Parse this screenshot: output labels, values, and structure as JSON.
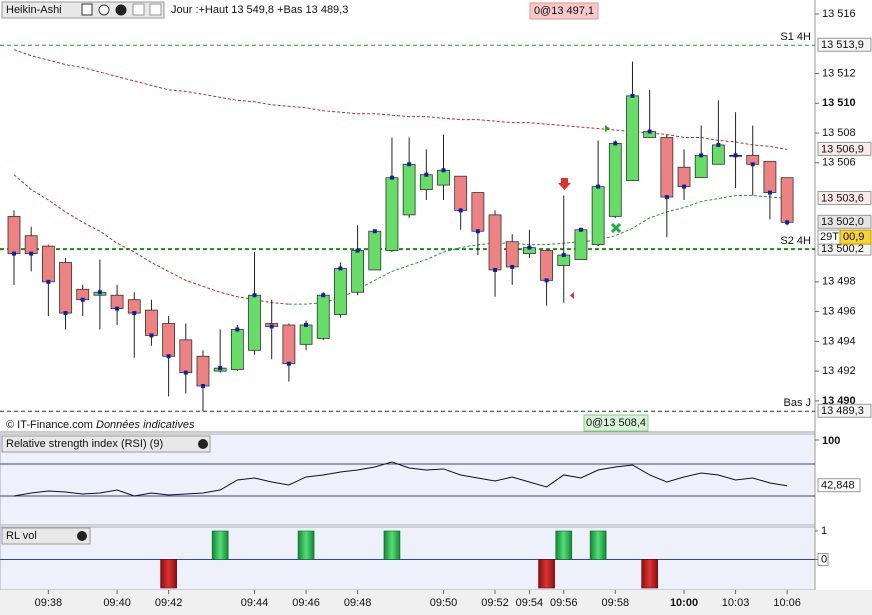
{
  "chart_data": [
    {
      "type": "candlestick",
      "title": "Heikin-Ashi",
      "info": "Jour :+Haut 13 549,8 +Bas 13 489,3",
      "order_top": "0@13 497,1",
      "order_bottom": "0@13 508,4",
      "copyright": "© IT-Finance.com",
      "disclaimer": "Données indicatives",
      "categories": [
        null,
        null,
        "09:38",
        null,
        null,
        null,
        "09:40",
        null,
        null,
        "09:42",
        null,
        null,
        null,
        null,
        "09:44",
        null,
        null,
        "09:46",
        null,
        null,
        "09:48",
        null,
        null,
        null,
        null,
        "09:50",
        null,
        null,
        "09:52",
        null,
        "09:54",
        null,
        "09:56",
        null,
        null,
        "09:58",
        null,
        null,
        null,
        "10:00",
        null,
        null,
        "10:03",
        null,
        null,
        "10:06"
      ],
      "bold_category": 39,
      "open": [
        13502.4,
        13501.1,
        13500.4,
        13499.3,
        13497.5,
        13497.1,
        13497.1,
        13496.8,
        13496.1,
        13495.2,
        13494.1,
        13493.0,
        13492.0,
        13492.1,
        13493.4,
        13495.2,
        13495.1,
        13493.8,
        13494.2,
        13495.8,
        13497.3,
        13498.8,
        13500.1,
        13502.5,
        13504.2,
        13504.5,
        13505.1,
        13504.0,
        13502.5,
        13500.7,
        13499.9,
        13500.1,
        13499.1,
        13499.5,
        13500.5,
        13502.4,
        13504.8,
        13507.7,
        13507.7,
        13505.7,
        13505.0,
        13505.9,
        13506.5,
        13506.5,
        13506.1,
        13505.0
      ],
      "high": [
        13502.8,
        13501.7,
        13500.5,
        13499.6,
        13497.8,
        13499.5,
        13497.8,
        13497.3,
        13496.8,
        13495.7,
        13495.2,
        13493.4,
        13494.8,
        13495.1,
        13500.0,
        13496.8,
        13495.2,
        13495.4,
        13497.3,
        13499.3,
        13501.8,
        13501.4,
        13507.7,
        13507.7,
        13506.9,
        13507.9,
        13505.1,
        13504.0,
        13502.8,
        13501.2,
        13501.5,
        13500.1,
        13503.8,
        13501.5,
        13507.5,
        13507.5,
        13512.8,
        13510.9,
        13507.9,
        13506.9,
        13508.5,
        13510.2,
        13509.4,
        13508.5,
        13506.1,
        13505.0
      ],
      "low": [
        13497.8,
        13498.7,
        13495.7,
        13494.8,
        13495.7,
        13494.8,
        13495.1,
        13492.9,
        13493.7,
        13490.3,
        13490.5,
        13489.3,
        13491.9,
        13492.0,
        13493.1,
        13492.8,
        13491.3,
        13493.4,
        13494.1,
        13495.6,
        13497.1,
        13498.8,
        13500.0,
        13502.3,
        13503.5,
        13503.5,
        13501.5,
        13499.8,
        13497.0,
        13497.8,
        13499.6,
        13496.4,
        13496.6,
        13499.5,
        13500.4,
        13502.3,
        13504.8,
        13507.7,
        13501.0,
        13503.5,
        13505.0,
        13505.9,
        13504.3,
        13503.8,
        13502.2,
        13501.8
      ],
      "close": [
        13499.9,
        13499.9,
        13498.0,
        13495.9,
        13496.8,
        13497.3,
        13496.2,
        13495.9,
        13494.4,
        13493.0,
        13491.9,
        13491.0,
        13492.2,
        13494.8,
        13497.1,
        13495.0,
        13492.5,
        13495.1,
        13497.1,
        13498.9,
        13500.1,
        13501.4,
        13505.0,
        13505.9,
        13505.2,
        13505.5,
        13502.8,
        13501.4,
        13498.8,
        13499.0,
        13500.3,
        13498.1,
        13499.8,
        13501.5,
        13504.4,
        13507.3,
        13510.5,
        13508.1,
        13503.7,
        13504.4,
        13506.5,
        13507.2,
        13506.5,
        13505.9,
        13504.0,
        13502.0
      ],
      "up_color": "#66dd66",
      "down_color": "#ee8282",
      "flat_color": "#000000",
      "series": [
        {
          "color": "#b03030",
          "last_label": "13 506,9",
          "values": [
            13513.6,
            13513.2,
            13512.9,
            13512.6,
            13512.4,
            13512.1,
            13511.8,
            13511.5,
            13511.2,
            13510.9,
            13510.8,
            13510.6,
            13510.4,
            13510.2,
            13510.1,
            13509.9,
            13509.8,
            13509.7,
            13509.5,
            13509.4,
            13509.3,
            13509.3,
            13509.2,
            13509.1,
            13509.1,
            13509.0,
            13508.9,
            13508.9,
            13508.8,
            13508.7,
            13508.7,
            13508.6,
            13508.5,
            13508.4,
            13508.3,
            13508.2,
            13508.1,
            13508.0,
            13507.9,
            13507.7,
            13507.7,
            13507.5,
            13507.4,
            13507.2,
            13507.1,
            13506.9
          ]
        },
        {
          "color": "#b03030",
          "values": [
            13505.2,
            13504.2,
            13503.5,
            13502.7,
            13502.0,
            13501.4,
            13500.6,
            13500.0,
            13499.3,
            13498.7,
            13498.1,
            13497.7,
            13497.3,
            13497.0,
            13496.8,
            13496.6,
            13496.5,
            null,
            null,
            null,
            null,
            null,
            null,
            null,
            null,
            null,
            null,
            null,
            null,
            null,
            null,
            null,
            null,
            null,
            null,
            null,
            null,
            null,
            null,
            null,
            null,
            null,
            null,
            null,
            null,
            null
          ]
        },
        {
          "color": "#2e8b57",
          "last_label": "13 503,6",
          "values": [
            null,
            null,
            null,
            null,
            null,
            null,
            null,
            null,
            null,
            null,
            null,
            null,
            null,
            null,
            null,
            null,
            13496.5,
            13496.5,
            13496.6,
            13496.9,
            13497.5,
            13498.1,
            13498.7,
            13499.1,
            13499.5,
            13500.0,
            13500.3,
            13500.5,
            13500.6,
            13500.6,
            13500.5,
            13500.5,
            13500.6,
            13500.7,
            13500.8,
            13501.1,
            13501.6,
            13502.3,
            13502.7,
            13503.0,
            13503.4,
            13503.6,
            13503.8,
            13503.8,
            13503.7,
            13503.6
          ]
        }
      ],
      "levels": [
        {
          "label": "S1 4H",
          "value": 13513.9,
          "value_label": "13 513,9",
          "color": "#2a9a2a"
        },
        {
          "label": "S2 4H",
          "value": 13500.2,
          "value_label": "13 500,2",
          "color": "#1a8a1a"
        },
        {
          "label": "Bas J",
          "value": 13489.3,
          "value_label": "13 489,3",
          "color": "#333333"
        }
      ],
      "price_tag": {
        "value": 13502.0,
        "label": "13 502,0"
      },
      "timer": "29T",
      "countdown": "00,9",
      "ylim": [
        13489,
        13516
      ],
      "yticks": [
        {
          "value": 13516,
          "label": "13 516"
        },
        {
          "value": 13512,
          "label": "13 512"
        },
        {
          "value": 13510,
          "label": "13 510",
          "bold": true
        },
        {
          "value": 13508,
          "label": "13 508"
        },
        {
          "value": 13506,
          "label": "13 506"
        },
        {
          "value": 13498,
          "label": "13 498"
        },
        {
          "value": 13496,
          "label": "13 496"
        },
        {
          "value": 13494,
          "label": "13 494"
        },
        {
          "value": 13492,
          "label": "13 492"
        },
        {
          "value": 13490,
          "label": "13 490",
          "bold": true
        }
      ]
    },
    {
      "type": "line",
      "title": "Relative strength index (RSI) (9)",
      "color": "#111111",
      "values": [
        30,
        33.8,
        36.3,
        35,
        32.5,
        33.8,
        37.5,
        30,
        33.8,
        31.3,
        32.5,
        33.8,
        37.5,
        50,
        52.5,
        47.5,
        43.8,
        53.8,
        56.3,
        60,
        62.5,
        66.3,
        72.5,
        65,
        62.5,
        63.8,
        56.3,
        52.5,
        48.8,
        53.8,
        47.5,
        41.3,
        56.3,
        52.5,
        62.5,
        66.3,
        68.8,
        56.3,
        47.5,
        53.8,
        58.8,
        56.3,
        50,
        52.5,
        46.3,
        42.848
      ],
      "last_label": "42,848",
      "ref_lines": [
        70,
        30
      ],
      "ylim": [
        0,
        100
      ],
      "yticks": [
        100
      ]
    },
    {
      "type": "bar",
      "title": "RL vol",
      "up_color": "#22aa44",
      "down_color": "#b01818",
      "values": [
        0,
        0,
        0,
        0,
        0,
        0,
        0,
        0,
        0,
        -1,
        0,
        0,
        1,
        0,
        0,
        0,
        0,
        1,
        0,
        0,
        0,
        0,
        1,
        0,
        0,
        0,
        0,
        0,
        0,
        0,
        0,
        -1,
        1,
        0,
        1,
        0,
        0,
        -1,
        0,
        0,
        0,
        0,
        0,
        0,
        0,
        0
      ],
      "ylim": [
        -1,
        1
      ],
      "yticks": [
        1,
        0
      ]
    }
  ]
}
